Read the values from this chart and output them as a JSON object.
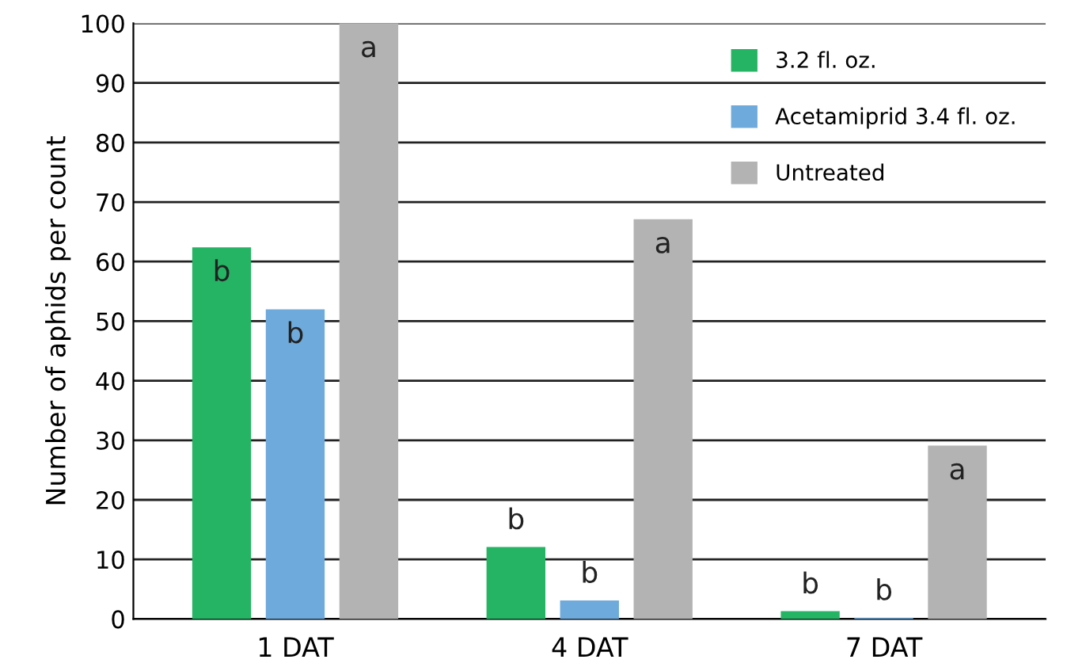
{
  "chart_data": {
    "type": "bar",
    "ylabel": "Number of aphids per count",
    "categories": [
      "1 DAT",
      "4 DAT",
      "7 DAT"
    ],
    "series": [
      {
        "name": "3.2 fl. oz.",
        "color": "#25b364",
        "values": [
          62.4,
          12.1,
          1.3
        ],
        "value_labels": [
          "b",
          "b",
          "b"
        ]
      },
      {
        "name": "Acetamiprid 3.4 fl. oz.",
        "color": "#6eaadc",
        "values": [
          52.0,
          3.1,
          0.2
        ],
        "value_labels": [
          "b",
          "b",
          "b"
        ]
      },
      {
        "name": "Untreated",
        "color": "#b3b3b3",
        "values": [
          100,
          67.1,
          29.1
        ],
        "value_labels": [
          "a",
          "a",
          "a"
        ]
      }
    ],
    "ylim": [
      0,
      100
    ],
    "yticks": [
      0,
      10,
      20,
      30,
      40,
      50,
      60,
      70,
      80,
      90,
      100
    ],
    "grid": "y",
    "legend": "top right"
  }
}
